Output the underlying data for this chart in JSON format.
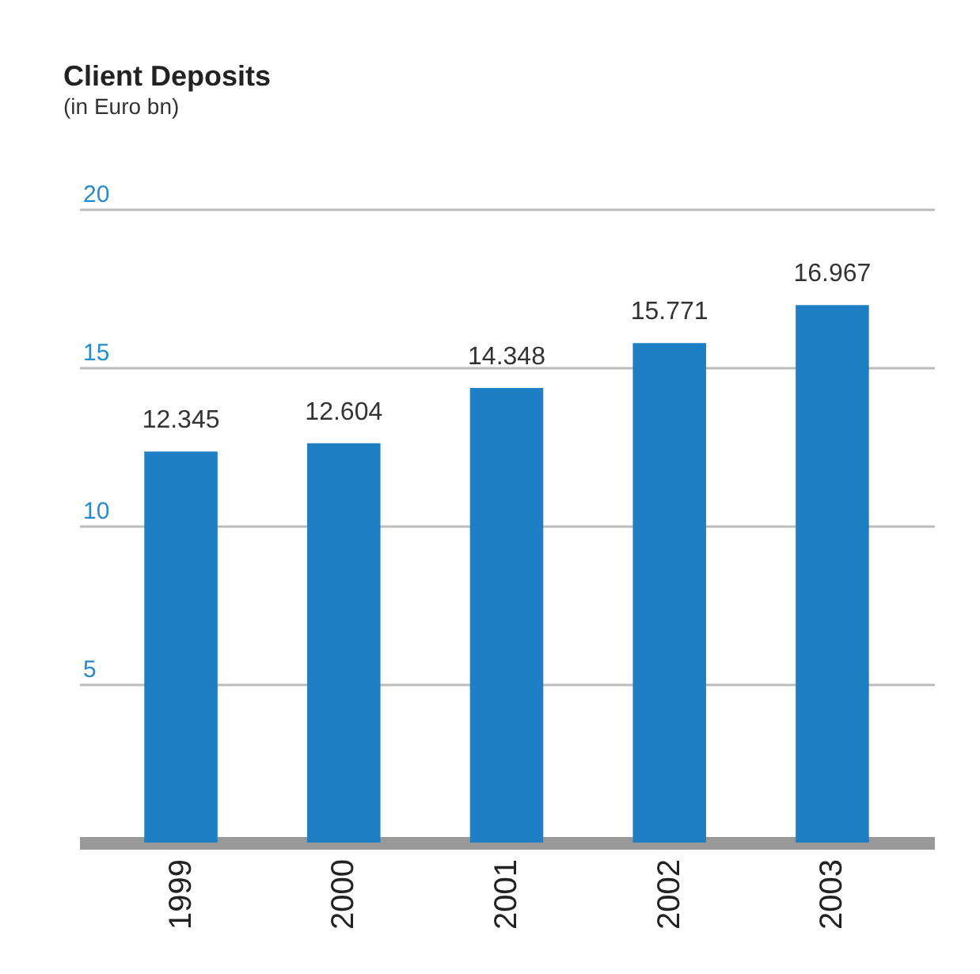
{
  "chart_data": {
    "type": "bar",
    "title": "Client Deposits",
    "subtitle": "(in Euro bn)",
    "categories": [
      "1999",
      "2000",
      "2001",
      "2002",
      "2003"
    ],
    "values": [
      12.345,
      12.604,
      14.348,
      15.771,
      16.967
    ],
    "color": "#1f7fc4",
    "ylim": [
      0,
      20
    ],
    "yticks": [
      5,
      10,
      15,
      20
    ],
    "grid": "y",
    "data_labels": true
  }
}
